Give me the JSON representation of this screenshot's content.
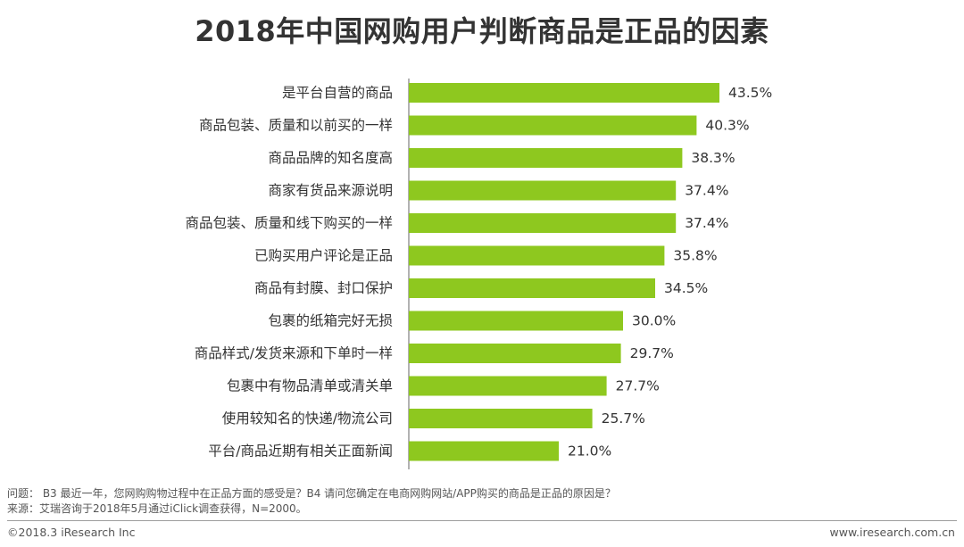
{
  "title": "2018年中国网购用户判断商品是正品的因素",
  "chart_data": {
    "type": "bar",
    "orientation": "horizontal",
    "bar_color": "#8ec81f",
    "value_suffix": "%",
    "xlim": [
      0,
      45
    ],
    "grid": false,
    "categories": [
      "是平台自营的商品",
      "商品包装、质量和以前买的一样",
      "商品品牌的知名度高",
      "商家有货品来源说明",
      "商品包装、质量和线下购买的一样",
      "已购买用户评论是正品",
      "商品有封膜、封口保护",
      "包裹的纸箱完好无损",
      "商品样式/发货来源和下单时一样",
      "包裹中有物品清单或清关单",
      "使用较知名的快递/物流公司",
      "平台/商品近期有相关正面新闻"
    ],
    "values": [
      43.5,
      40.3,
      38.3,
      37.4,
      37.4,
      35.8,
      34.5,
      30.0,
      29.7,
      27.7,
      25.7,
      21.0
    ],
    "value_labels": [
      "43.5%",
      "40.3%",
      "38.3%",
      "37.4%",
      "37.4%",
      "35.8%",
      "34.5%",
      "30.0%",
      "29.7%",
      "27.7%",
      "25.7%",
      "21.0%"
    ]
  },
  "notes": {
    "question": "问题： B3 最近一年，您网购购物过程中在正品方面的感受是？B4 请问您确定在电商网购网站/APP购买的商品是正品的原因是？",
    "source": "来源：艾瑞咨询于2018年5月通过iClick调查获得，N=2000。"
  },
  "footer": {
    "copyright": "©2018.3 iResearch Inc",
    "website": "www.iresearch.com.cn"
  }
}
